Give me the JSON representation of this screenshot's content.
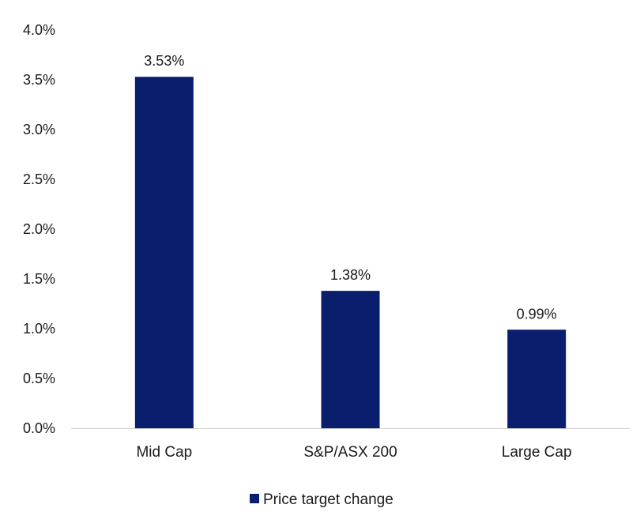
{
  "chart_data": {
    "type": "bar",
    "categories": [
      "Mid Cap",
      "S&P/ASX 200",
      "Large Cap"
    ],
    "series": [
      {
        "name": "Price target change",
        "values": [
          3.53,
          1.38,
          0.99
        ],
        "data_labels": [
          "3.53%",
          "1.38%",
          "0.99%"
        ],
        "color": "#0a1e6e"
      }
    ],
    "ylim": [
      0,
      4.0
    ],
    "yticks": [
      0,
      0.5,
      1.0,
      1.5,
      2.0,
      2.5,
      3.0,
      3.5,
      4.0
    ],
    "ytick_labels": [
      "0.0%",
      "0.5%",
      "1.0%",
      "1.5%",
      "2.0%",
      "2.5%",
      "3.0%",
      "3.5%",
      "4.0%"
    ],
    "grid": false,
    "legend_position": "bottom",
    "axis_color": "#d0d0d0"
  }
}
